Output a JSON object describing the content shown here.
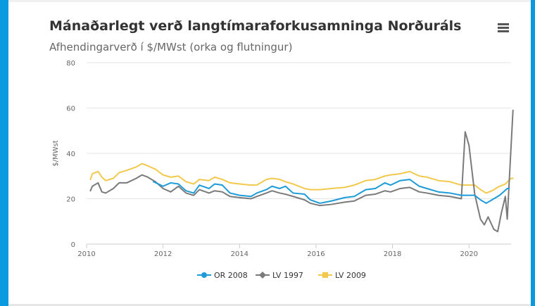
{
  "header": {
    "title": "Mánaðarlegt verð langtímaraforkusamninga Norðuráls",
    "subtitle": "Afhendingarverð í $/MWst (orka og flutningur)",
    "menu_icon": "hamburger-menu-icon"
  },
  "colors": {
    "frame": "#0a9ae0",
    "OR 2008": "#1d9bd7",
    "LV 1997": "#7a7a7a",
    "LV 2009": "#f2c94c"
  },
  "chart_data": {
    "type": "line",
    "title": "Mánaðarlegt verð langtímaraforkusamninga Norðuráls",
    "subtitle": "Afhendingarverð í $/MWst (orka og flutningur)",
    "xlabel": "",
    "ylabel": "$/MWst",
    "xlim": [
      2010,
      2021.1
    ],
    "ylim": [
      0,
      80
    ],
    "x_ticks": [
      2010,
      2012,
      2014,
      2016,
      2018,
      2020
    ],
    "y_ticks": [
      0,
      20,
      40,
      60,
      80
    ],
    "grid": "horizontal",
    "legend": "bottom",
    "series": [
      {
        "name": "OR 2008",
        "marker": "circle",
        "points": [
          [
            2011.75,
            27.5
          ],
          [
            2012.0,
            25.5
          ],
          [
            2012.2,
            27.0
          ],
          [
            2012.4,
            26.5
          ],
          [
            2012.6,
            23.5
          ],
          [
            2012.8,
            22.5
          ],
          [
            2012.95,
            26.0
          ],
          [
            2013.2,
            24.5
          ],
          [
            2013.35,
            26.5
          ],
          [
            2013.55,
            26.0
          ],
          [
            2013.75,
            22.5
          ],
          [
            2014.0,
            21.5
          ],
          [
            2014.3,
            21.0
          ],
          [
            2014.45,
            22.5
          ],
          [
            2014.7,
            24.0
          ],
          [
            2014.85,
            25.5
          ],
          [
            2015.05,
            24.5
          ],
          [
            2015.2,
            25.5
          ],
          [
            2015.4,
            22.5
          ],
          [
            2015.7,
            22.0
          ],
          [
            2015.85,
            19.5
          ],
          [
            2016.1,
            18.0
          ],
          [
            2016.4,
            19.0
          ],
          [
            2016.75,
            20.5
          ],
          [
            2017.0,
            21.0
          ],
          [
            2017.3,
            24.0
          ],
          [
            2017.55,
            24.5
          ],
          [
            2017.8,
            27.0
          ],
          [
            2017.95,
            26.0
          ],
          [
            2018.2,
            28.0
          ],
          [
            2018.45,
            28.5
          ],
          [
            2018.7,
            25.5
          ],
          [
            2018.9,
            24.5
          ],
          [
            2019.2,
            23.0
          ],
          [
            2019.5,
            22.5
          ],
          [
            2019.8,
            21.5
          ],
          [
            2020.15,
            21.5
          ],
          [
            2020.3,
            19.5
          ],
          [
            2020.45,
            18.0
          ],
          [
            2020.6,
            19.5
          ],
          [
            2020.8,
            21.5
          ],
          [
            2020.9,
            23.0
          ],
          [
            2021.0,
            24.5
          ],
          [
            2021.05,
            24.5
          ]
        ]
      },
      {
        "name": "LV 1997",
        "marker": "diamond",
        "points": [
          [
            2010.1,
            23.5
          ],
          [
            2010.15,
            25.5
          ],
          [
            2010.3,
            27.0
          ],
          [
            2010.4,
            23.0
          ],
          [
            2010.5,
            22.5
          ],
          [
            2010.7,
            24.5
          ],
          [
            2010.85,
            27.0
          ],
          [
            2011.05,
            27.0
          ],
          [
            2011.3,
            29.0
          ],
          [
            2011.45,
            30.5
          ],
          [
            2011.6,
            29.5
          ],
          [
            2011.8,
            27.5
          ],
          [
            2012.0,
            24.5
          ],
          [
            2012.2,
            23.0
          ],
          [
            2012.4,
            25.5
          ],
          [
            2012.6,
            22.5
          ],
          [
            2012.8,
            21.5
          ],
          [
            2012.95,
            24.0
          ],
          [
            2013.2,
            22.5
          ],
          [
            2013.35,
            23.5
          ],
          [
            2013.55,
            23.0
          ],
          [
            2013.75,
            21.0
          ],
          [
            2014.0,
            20.5
          ],
          [
            2014.3,
            20.0
          ],
          [
            2014.45,
            21.0
          ],
          [
            2014.7,
            22.5
          ],
          [
            2014.85,
            23.5
          ],
          [
            2015.05,
            22.5
          ],
          [
            2015.2,
            22.0
          ],
          [
            2015.4,
            21.0
          ],
          [
            2015.7,
            19.5
          ],
          [
            2015.85,
            18.0
          ],
          [
            2016.1,
            17.0
          ],
          [
            2016.4,
            17.5
          ],
          [
            2016.75,
            18.5
          ],
          [
            2017.0,
            19.0
          ],
          [
            2017.3,
            21.5
          ],
          [
            2017.55,
            22.0
          ],
          [
            2017.8,
            23.5
          ],
          [
            2017.95,
            23.0
          ],
          [
            2018.2,
            24.5
          ],
          [
            2018.45,
            25.0
          ],
          [
            2018.7,
            23.0
          ],
          [
            2018.9,
            22.5
          ],
          [
            2019.2,
            21.5
          ],
          [
            2019.5,
            21.0
          ],
          [
            2019.8,
            20.0
          ],
          [
            2019.9,
            49.5
          ],
          [
            2020.0,
            43.5
          ],
          [
            2020.15,
            22.0
          ],
          [
            2020.3,
            11.0
          ],
          [
            2020.4,
            8.5
          ],
          [
            2020.5,
            12.0
          ],
          [
            2020.65,
            6.5
          ],
          [
            2020.75,
            5.5
          ],
          [
            2020.85,
            14.0
          ],
          [
            2020.95,
            21.0
          ],
          [
            2021.0,
            11.0
          ],
          [
            2021.15,
            59.0
          ]
        ]
      },
      {
        "name": "LV 2009",
        "marker": "square",
        "points": [
          [
            2010.1,
            28.5
          ],
          [
            2010.15,
            31.0
          ],
          [
            2010.3,
            32.0
          ],
          [
            2010.4,
            29.5
          ],
          [
            2010.5,
            28.0
          ],
          [
            2010.7,
            29.0
          ],
          [
            2010.85,
            31.5
          ],
          [
            2011.05,
            32.5
          ],
          [
            2011.3,
            34.0
          ],
          [
            2011.45,
            35.5
          ],
          [
            2011.6,
            34.5
          ],
          [
            2011.8,
            33.0
          ],
          [
            2012.0,
            30.5
          ],
          [
            2012.2,
            29.5
          ],
          [
            2012.4,
            30.0
          ],
          [
            2012.6,
            27.5
          ],
          [
            2012.8,
            26.5
          ],
          [
            2012.95,
            28.5
          ],
          [
            2013.2,
            28.0
          ],
          [
            2013.35,
            29.5
          ],
          [
            2013.55,
            28.5
          ],
          [
            2013.75,
            27.0
          ],
          [
            2014.0,
            26.5
          ],
          [
            2014.3,
            26.0
          ],
          [
            2014.45,
            26.0
          ],
          [
            2014.7,
            28.5
          ],
          [
            2014.85,
            29.0
          ],
          [
            2015.05,
            28.5
          ],
          [
            2015.2,
            27.5
          ],
          [
            2015.4,
            26.5
          ],
          [
            2015.7,
            24.5
          ],
          [
            2015.85,
            24.0
          ],
          [
            2016.1,
            24.0
          ],
          [
            2016.4,
            24.5
          ],
          [
            2016.75,
            25.0
          ],
          [
            2017.0,
            26.0
          ],
          [
            2017.3,
            28.0
          ],
          [
            2017.55,
            28.5
          ],
          [
            2017.8,
            30.0
          ],
          [
            2017.95,
            30.5
          ],
          [
            2018.2,
            31.0
          ],
          [
            2018.45,
            32.0
          ],
          [
            2018.7,
            30.0
          ],
          [
            2018.9,
            29.5
          ],
          [
            2019.2,
            28.0
          ],
          [
            2019.5,
            27.5
          ],
          [
            2019.8,
            26.0
          ],
          [
            2020.15,
            26.0
          ],
          [
            2020.3,
            24.0
          ],
          [
            2020.45,
            22.5
          ],
          [
            2020.6,
            23.5
          ],
          [
            2020.8,
            25.5
          ],
          [
            2020.95,
            26.5
          ],
          [
            2021.1,
            29.0
          ],
          [
            2021.15,
            29.0
          ]
        ]
      }
    ]
  }
}
